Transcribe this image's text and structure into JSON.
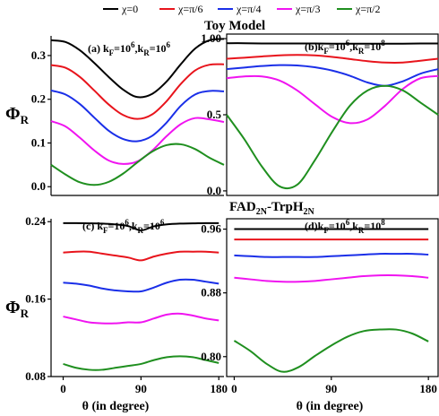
{
  "legend": [
    {
      "label": "χ=0",
      "color": "#000000"
    },
    {
      "label": "χ=π/6",
      "color": "#e8141c"
    },
    {
      "label": "χ=π/4",
      "color": "#1a2fe8"
    },
    {
      "label": "χ=π/3",
      "color": "#f014f0"
    },
    {
      "label": "χ=π/2",
      "color": "#1f8f1f"
    }
  ],
  "section_titles": {
    "top": "Toy Model",
    "bottom_main": "FAD",
    "bottom_sub1": "2N",
    "bottom_dash": "-TrpH",
    "bottom_sub2": "2N"
  },
  "ylabel": {
    "main": "Φ",
    "sub": "R"
  },
  "xlabel": "θ (in degree)",
  "chart_data": [
    {
      "id": "a",
      "type": "line",
      "label": {
        "prefix": "(a) k",
        "sub1": "F",
        "mid": "=10",
        "sup1": "6",
        "comma": ",k",
        "sub2": "R",
        "mid2": "=10",
        "sup2": "6"
      },
      "xlim": [
        0,
        180
      ],
      "ylim": [
        -0.02,
        0.345
      ],
      "yticks": [
        0.0,
        0.1,
        0.2,
        0.3
      ],
      "ytick_labels": [
        "0.0",
        "0.1",
        "0.2",
        "0.3"
      ],
      "xticks": [],
      "xtick_labels": [],
      "x": [
        0,
        15,
        30,
        45,
        60,
        75,
        90,
        105,
        120,
        135,
        150,
        165,
        180
      ],
      "series": [
        {
          "name": "χ=0",
          "values": [
            0.335,
            0.331,
            0.312,
            0.283,
            0.251,
            0.222,
            0.205,
            0.212,
            0.24,
            0.28,
            0.316,
            0.335,
            0.338
          ]
        },
        {
          "name": "χ=π/6",
          "values": [
            0.278,
            0.272,
            0.251,
            0.22,
            0.188,
            0.164,
            0.155,
            0.165,
            0.195,
            0.235,
            0.266,
            0.279,
            0.28
          ]
        },
        {
          "name": "χ=π/4",
          "values": [
            0.22,
            0.211,
            0.189,
            0.158,
            0.128,
            0.109,
            0.104,
            0.116,
            0.146,
            0.185,
            0.211,
            0.219,
            0.218
          ]
        },
        {
          "name": "χ=π/3",
          "values": [
            0.15,
            0.138,
            0.112,
            0.083,
            0.06,
            0.052,
            0.058,
            0.082,
            0.115,
            0.143,
            0.157,
            0.154,
            0.148
          ]
        },
        {
          "name": "χ=π/2",
          "values": [
            0.05,
            0.028,
            0.01,
            0.004,
            0.011,
            0.03,
            0.056,
            0.08,
            0.095,
            0.097,
            0.086,
            0.066,
            0.05
          ]
        }
      ]
    },
    {
      "id": "b",
      "type": "line",
      "label": {
        "prefix": "(b)k",
        "sub1": "F",
        "mid": "=10",
        "sup1": "6",
        "comma": ",k",
        "sub2": "R",
        "mid2": "=10",
        "sup2": "8"
      },
      "xlim": [
        0,
        180
      ],
      "ylim": [
        -0.03,
        1.03
      ],
      "yticks": [
        0.0,
        0.5,
        1.0
      ],
      "ytick_labels": [
        "0.0",
        "0.5",
        "1.00"
      ],
      "xticks": [],
      "xtick_labels": [],
      "x": [
        0,
        15,
        30,
        45,
        60,
        75,
        90,
        105,
        120,
        135,
        150,
        165,
        180
      ],
      "series": [
        {
          "name": "χ=0",
          "values": [
            0.97,
            0.97,
            0.968,
            0.968,
            0.968,
            0.968,
            0.967,
            0.967,
            0.967,
            0.967,
            0.967,
            0.968,
            0.968
          ]
        },
        {
          "name": "χ=π/6",
          "values": [
            0.868,
            0.875,
            0.883,
            0.89,
            0.893,
            0.89,
            0.88,
            0.866,
            0.852,
            0.843,
            0.843,
            0.855,
            0.868
          ]
        },
        {
          "name": "χ=π/4",
          "values": [
            0.8,
            0.81,
            0.82,
            0.826,
            0.824,
            0.812,
            0.79,
            0.756,
            0.712,
            0.69,
            0.72,
            0.77,
            0.8
          ]
        },
        {
          "name": "χ=π/3",
          "values": [
            0.74,
            0.752,
            0.752,
            0.725,
            0.66,
            0.57,
            0.485,
            0.445,
            0.47,
            0.56,
            0.67,
            0.74,
            0.755
          ]
        },
        {
          "name": "χ=π/2",
          "values": [
            0.5,
            0.34,
            0.16,
            0.03,
            0.04,
            0.2,
            0.39,
            0.56,
            0.66,
            0.69,
            0.66,
            0.58,
            0.5
          ]
        }
      ]
    },
    {
      "id": "c",
      "type": "line",
      "label": {
        "prefix": "(c) k",
        "sub1": "F",
        "mid": "=10",
        "sup1": "6",
        "comma": ",k",
        "sub2": "R",
        "mid2": "=10",
        "sup2": "6"
      },
      "xlim": [
        -14,
        186
      ],
      "ylim": [
        0.08,
        0.243
      ],
      "yticks": [
        0.08,
        0.16,
        0.24
      ],
      "ytick_labels": [
        "0.08",
        "0.16",
        "0.24"
      ],
      "xticks": [
        0,
        90,
        180
      ],
      "xtick_labels": [
        "0",
        "90",
        "180"
      ],
      "x": [
        0,
        15,
        30,
        45,
        60,
        75,
        90,
        105,
        120,
        135,
        150,
        165,
        180
      ],
      "series": [
        {
          "name": "χ=0",
          "values": [
            0.2385,
            0.2385,
            0.2383,
            0.238,
            0.2372,
            0.2355,
            0.231,
            0.2352,
            0.2372,
            0.238,
            0.2382,
            0.2385,
            0.2385
          ]
        },
        {
          "name": "χ=π/6",
          "values": [
            0.208,
            0.209,
            0.209,
            0.207,
            0.205,
            0.203,
            0.2,
            0.204,
            0.207,
            0.209,
            0.209,
            0.209,
            0.208
          ]
        },
        {
          "name": "χ=π/4",
          "values": [
            0.177,
            0.176,
            0.174,
            0.171,
            0.169,
            0.168,
            0.168,
            0.172,
            0.177,
            0.18,
            0.18,
            0.178,
            0.176
          ]
        },
        {
          "name": "χ=π/3",
          "values": [
            0.142,
            0.139,
            0.136,
            0.135,
            0.135,
            0.136,
            0.136,
            0.14,
            0.144,
            0.145,
            0.143,
            0.14,
            0.138
          ]
        },
        {
          "name": "χ=π/2",
          "values": [
            0.093,
            0.089,
            0.087,
            0.087,
            0.089,
            0.091,
            0.093,
            0.097,
            0.1,
            0.101,
            0.1,
            0.097,
            0.094
          ]
        }
      ]
    },
    {
      "id": "d",
      "type": "line",
      "label": {
        "prefix": "(d)k",
        "sub1": "F",
        "mid": "=10",
        "sup1": "6",
        "comma": ",k",
        "sub2": "R",
        "mid2": "=10",
        "sup2": "8"
      },
      "xlim": [
        -7,
        189
      ],
      "ylim": [
        0.775,
        0.973
      ],
      "yticks": [
        0.8,
        0.88,
        0.96
      ],
      "ytick_labels": [
        "0.80",
        "0.88",
        "0.96"
      ],
      "xticks": [
        0,
        90,
        180
      ],
      "xtick_labels": [
        "0",
        "90",
        "180"
      ],
      "x": [
        0,
        15,
        30,
        45,
        60,
        75,
        90,
        105,
        120,
        135,
        150,
        165,
        180
      ],
      "series": [
        {
          "name": "χ=0",
          "values": [
            0.96,
            0.96,
            0.96,
            0.96,
            0.96,
            0.96,
            0.96,
            0.96,
            0.96,
            0.96,
            0.96,
            0.96,
            0.96
          ]
        },
        {
          "name": "χ=π/6",
          "values": [
            0.947,
            0.947,
            0.947,
            0.947,
            0.947,
            0.947,
            0.947,
            0.947,
            0.947,
            0.947,
            0.947,
            0.947,
            0.947
          ]
        },
        {
          "name": "χ=π/4",
          "values": [
            0.927,
            0.926,
            0.925,
            0.925,
            0.925,
            0.925,
            0.926,
            0.927,
            0.928,
            0.929,
            0.929,
            0.929,
            0.928
          ]
        },
        {
          "name": "χ=π/3",
          "values": [
            0.899,
            0.897,
            0.895,
            0.894,
            0.894,
            0.895,
            0.897,
            0.899,
            0.901,
            0.902,
            0.902,
            0.901,
            0.899
          ]
        },
        {
          "name": "χ=π/2",
          "values": [
            0.82,
            0.807,
            0.791,
            0.781,
            0.787,
            0.801,
            0.814,
            0.825,
            0.832,
            0.834,
            0.834,
            0.829,
            0.819
          ]
        }
      ]
    }
  ]
}
